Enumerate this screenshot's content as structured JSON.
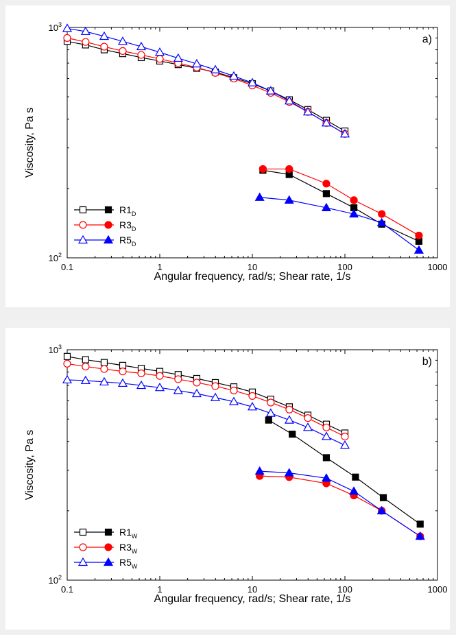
{
  "chart_data": [
    {
      "type": "line",
      "panel_label": "a)",
      "xlabel": "Angular frequency, rad/s; Shear rate, 1/s",
      "ylabel": "Viscosity, Pa s",
      "xscale": "log",
      "yscale": "log",
      "xlim": [
        0.1,
        1000
      ],
      "ylim": [
        100,
        1000
      ],
      "xticks": [
        {
          "value": 0.1,
          "label": "0.1"
        },
        {
          "value": 1,
          "label": "1"
        },
        {
          "value": 10,
          "label": "10"
        },
        {
          "value": 100,
          "label": "100"
        },
        {
          "value": 1000,
          "label": "1000"
        }
      ],
      "yticks": [
        {
          "value": 100,
          "base": "10",
          "exp": "2"
        },
        {
          "value": 1000,
          "base": "10",
          "exp": "3"
        }
      ],
      "legend_placement": "bottom-left",
      "legend": [
        {
          "name": "R1",
          "sub": "D",
          "color": "#000000",
          "marker": "square"
        },
        {
          "name": "R3",
          "sub": "D",
          "color": "#ff0000",
          "marker": "circle"
        },
        {
          "name": "R5",
          "sub": "D",
          "color": "#0000ff",
          "marker": "triangle"
        }
      ],
      "series": [
        {
          "name": "R1D open",
          "color": "#000000",
          "marker": "square",
          "filled": false,
          "x": [
            0.1,
            0.158,
            0.251,
            0.398,
            0.631,
            1,
            1.58,
            2.51,
            3.98,
            6.31,
            10,
            15.8,
            25.1,
            39.8,
            63.1,
            100
          ],
          "y": [
            870,
            840,
            800,
            770,
            740,
            715,
            690,
            665,
            640,
            605,
            570,
            530,
            485,
            440,
            395,
            355
          ]
        },
        {
          "name": "R3D open",
          "color": "#ff0000",
          "marker": "circle",
          "filled": false,
          "x": [
            0.1,
            0.158,
            0.251,
            0.398,
            0.631,
            1,
            1.58,
            2.51,
            3.98,
            6.31,
            10,
            15.8,
            25.1,
            39.8,
            63.1,
            100
          ],
          "y": [
            900,
            865,
            825,
            790,
            760,
            730,
            700,
            670,
            635,
            600,
            560,
            520,
            475,
            430,
            385,
            345
          ]
        },
        {
          "name": "R5D open",
          "color": "#0000ff",
          "marker": "triangle",
          "filled": false,
          "x": [
            0.1,
            0.158,
            0.251,
            0.398,
            0.631,
            1,
            1.58,
            2.51,
            3.98,
            6.31,
            10,
            15.8,
            25.1,
            39.8,
            63.1,
            100
          ],
          "y": [
            990,
            960,
            915,
            870,
            825,
            780,
            735,
            695,
            655,
            615,
            575,
            530,
            480,
            430,
            385,
            345
          ]
        },
        {
          "name": "R1D filled",
          "color": "#000000",
          "marker": "square",
          "filled": true,
          "x": [
            13,
            25,
            63,
            125,
            250,
            630
          ],
          "y": [
            240,
            230,
            190,
            165,
            140,
            118
          ]
        },
        {
          "name": "R3D filled",
          "color": "#ff0000",
          "marker": "circle",
          "filled": true,
          "x": [
            13,
            25,
            63,
            125,
            250,
            630
          ],
          "y": [
            243,
            243,
            210,
            178,
            155,
            125
          ]
        },
        {
          "name": "R5D filled",
          "color": "#0000ff",
          "marker": "triangle",
          "filled": true,
          "x": [
            12,
            25,
            63,
            125,
            250,
            630
          ],
          "y": [
            183,
            178,
            165,
            155,
            142,
            108
          ]
        }
      ]
    },
    {
      "type": "line",
      "panel_label": "b)",
      "xlabel": "Angular frequency, rad/s; Shear rate, 1/s",
      "ylabel": "Viscosity, Pa s",
      "xscale": "log",
      "yscale": "log",
      "xlim": [
        0.1,
        1000
      ],
      "ylim": [
        100,
        1000
      ],
      "xticks": [
        {
          "value": 0.1,
          "label": "0.1"
        },
        {
          "value": 1,
          "label": "1"
        },
        {
          "value": 10,
          "label": "10"
        },
        {
          "value": 100,
          "label": "100"
        },
        {
          "value": 1000,
          "label": "1000"
        }
      ],
      "yticks": [
        {
          "value": 100,
          "base": "10",
          "exp": "2"
        },
        {
          "value": 1000,
          "base": "10",
          "exp": "3"
        }
      ],
      "legend_placement": "bottom-left",
      "legend": [
        {
          "name": "R1",
          "sub": "W",
          "color": "#000000",
          "marker": "square"
        },
        {
          "name": "R3",
          "sub": "W",
          "color": "#ff0000",
          "marker": "circle"
        },
        {
          "name": "R5",
          "sub": "W",
          "color": "#0000ff",
          "marker": "triangle"
        }
      ],
      "series": [
        {
          "name": "R1W open",
          "color": "#000000",
          "marker": "square",
          "filled": false,
          "x": [
            0.1,
            0.158,
            0.251,
            0.398,
            0.631,
            1,
            1.58,
            2.51,
            3.98,
            6.31,
            10,
            15.8,
            25.1,
            39.8,
            63.1,
            100
          ],
          "y": [
            935,
            905,
            880,
            855,
            830,
            805,
            780,
            750,
            720,
            690,
            655,
            610,
            565,
            520,
            475,
            435
          ]
        },
        {
          "name": "R3W open",
          "color": "#ff0000",
          "marker": "circle",
          "filled": false,
          "x": [
            0.1,
            0.158,
            0.251,
            0.398,
            0.631,
            1,
            1.58,
            2.51,
            3.98,
            6.31,
            10,
            15.8,
            25.1,
            39.8,
            63.1,
            100
          ],
          "y": [
            870,
            845,
            825,
            805,
            790,
            770,
            745,
            720,
            695,
            665,
            630,
            590,
            550,
            505,
            460,
            420
          ]
        },
        {
          "name": "R5W open",
          "color": "#0000ff",
          "marker": "triangle",
          "filled": false,
          "x": [
            0.1,
            0.158,
            0.251,
            0.398,
            0.631,
            1,
            1.58,
            2.51,
            3.98,
            6.31,
            10,
            15.8,
            25.1,
            39.8,
            63.1,
            100
          ],
          "y": [
            740,
            735,
            725,
            715,
            700,
            685,
            665,
            645,
            620,
            595,
            565,
            530,
            495,
            460,
            420,
            385
          ]
        },
        {
          "name": "R1W filled",
          "color": "#000000",
          "marker": "square",
          "filled": true,
          "x": [
            15,
            27,
            63,
            130,
            260,
            650
          ],
          "y": [
            495,
            430,
            340,
            280,
            228,
            175
          ]
        },
        {
          "name": "R3W filled",
          "color": "#ff0000",
          "marker": "circle",
          "filled": true,
          "x": [
            12,
            25,
            63,
            125,
            250,
            650
          ],
          "y": [
            283,
            280,
            263,
            233,
            200,
            155
          ]
        },
        {
          "name": "R5W filled",
          "color": "#0000ff",
          "marker": "triangle",
          "filled": true,
          "x": [
            12,
            25,
            63,
            125,
            250,
            650
          ],
          "y": [
            297,
            292,
            277,
            243,
            200,
            155
          ]
        }
      ]
    }
  ]
}
